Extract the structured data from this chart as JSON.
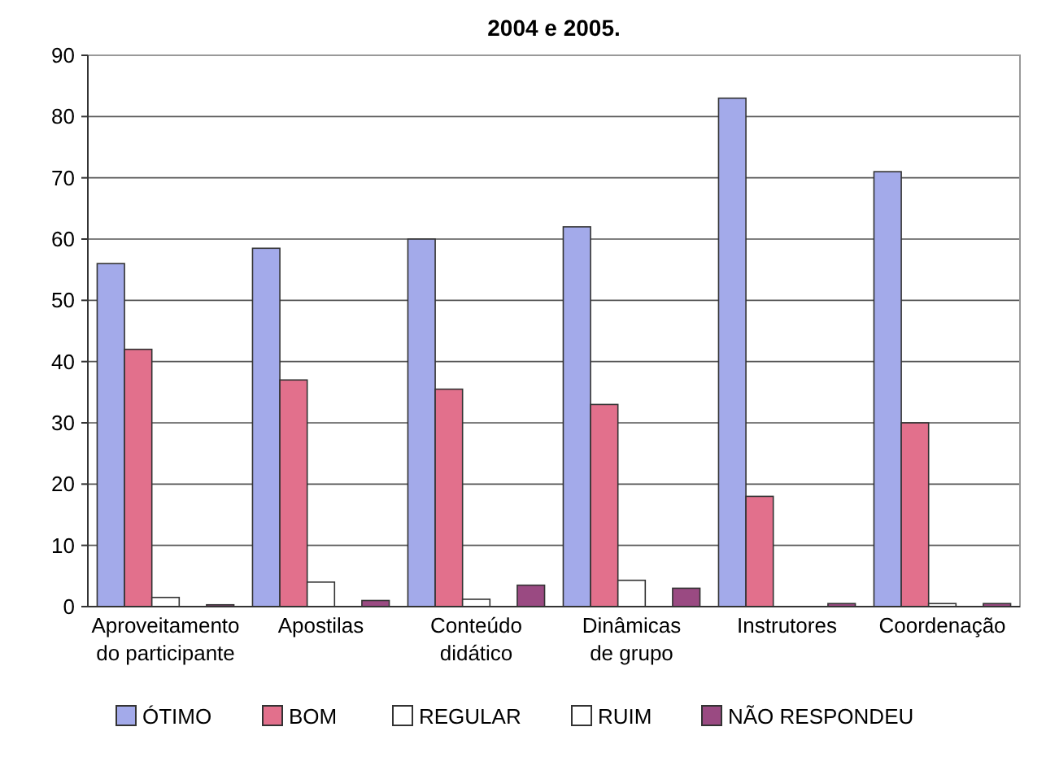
{
  "chart_data": {
    "type": "bar",
    "title": "2004 e 2005.",
    "categories": [
      "Aproveitamento do participante",
      "Apostilas",
      "Conteúdo didático",
      "Dinâmicas de grupo",
      "Instrutores",
      "Coordenação"
    ],
    "series": [
      {
        "name": "ÓTIMO",
        "color": "#a3aaea",
        "values": [
          56,
          58.5,
          60,
          62,
          83,
          71
        ]
      },
      {
        "name": "BOM",
        "color": "#e2708c",
        "values": [
          42,
          37,
          35.5,
          33,
          18,
          30
        ]
      },
      {
        "name": "REGULAR",
        "color": "#ffffff",
        "values": [
          1.5,
          4,
          1.2,
          4.3,
          0,
          0.5
        ]
      },
      {
        "name": "RUIM",
        "color": "#ffffff",
        "values": [
          0,
          0,
          0,
          0,
          0,
          0
        ]
      },
      {
        "name": "NÃO RESPONDEU",
        "color": "#9a4a82",
        "values": [
          0.3,
          1,
          3.5,
          3,
          0.5,
          0.5
        ]
      }
    ],
    "ylim": [
      0,
      90
    ],
    "yticks": [
      0,
      10,
      20,
      30,
      40,
      50,
      60,
      70,
      80,
      90
    ],
    "grid": "y",
    "legend": "bottom"
  }
}
